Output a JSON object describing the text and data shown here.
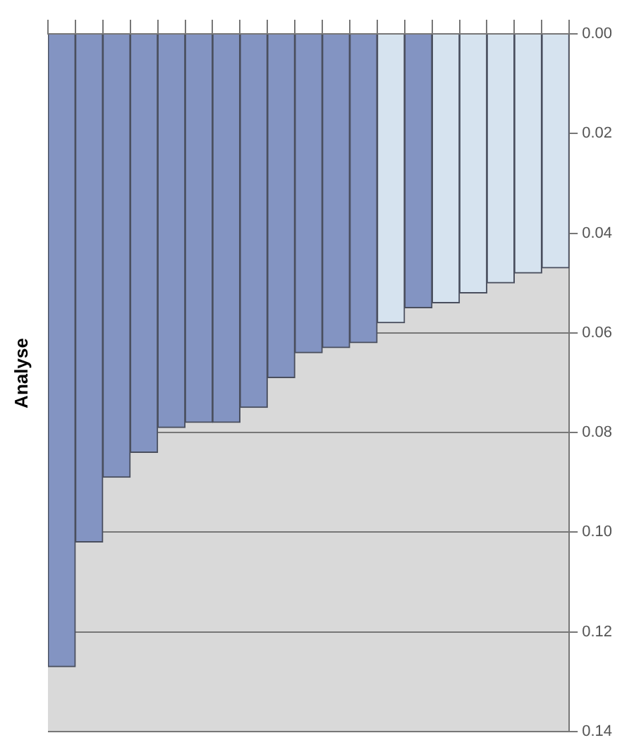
{
  "chart_data": {
    "type": "bar",
    "title": "Analyse",
    "categories": [
      null,
      null,
      null,
      null,
      null,
      null,
      null,
      null,
      null,
      null,
      null,
      null,
      null,
      null,
      null,
      null,
      null,
      null,
      null
    ],
    "values": [
      0.127,
      0.102,
      0.089,
      0.084,
      0.079,
      0.078,
      0.078,
      0.075,
      0.069,
      0.064,
      0.063,
      0.062,
      0.058,
      0.055,
      0.054,
      0.052,
      0.05,
      0.048,
      0.047
    ],
    "colors": [
      "#8394c2",
      "#8394c2",
      "#8394c2",
      "#8394c2",
      "#8394c2",
      "#8394c2",
      "#8394c2",
      "#8394c2",
      "#8394c2",
      "#8394c2",
      "#8394c2",
      "#8394c2",
      "#d6e3ef",
      "#8394c2",
      "#d6e3ef",
      "#d6e3ef",
      "#d6e3ef",
      "#d6e3ef",
      "#d6e3ef"
    ],
    "ylim": [
      0.14,
      0
    ],
    "yticks": [
      {
        "value": 0,
        "label": "0.00"
      },
      0.02,
      0.04,
      0.06,
      0.08,
      {
        "value": 0.1,
        "label": "0.10"
      },
      0.12,
      0.14
    ],
    "grid": "y",
    "tick_labels": "y"
  }
}
